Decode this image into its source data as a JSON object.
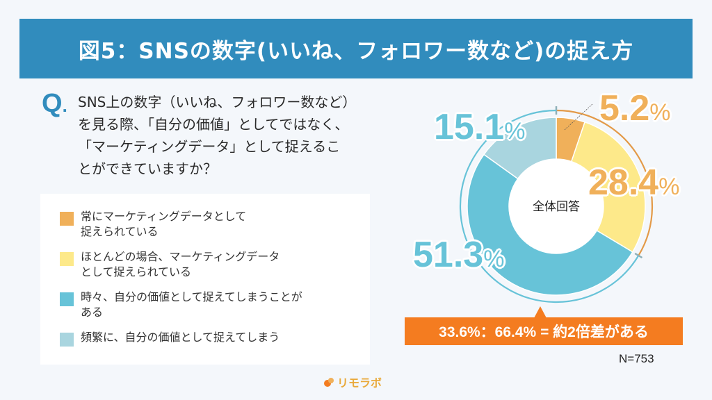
{
  "header": {
    "title": "図5：SNSの数字(いいね、フォロワー数など)の捉え方"
  },
  "question": {
    "mark": "Q",
    "mark_dot": ".",
    "text": "SNS上の数字（いいね、フォロワー数など）\nを見る際、「自分の価値」としてではなく、\n「マーケティングデータ」として捉えるこ\nとができていますか？"
  },
  "legend": {
    "items": [
      {
        "label": "常にマーケティングデータとして\n捉えられている",
        "color": "#f0b05a"
      },
      {
        "label": "ほとんどの場合、マーケティングデータ\nとして捉えられている",
        "color": "#fde98a"
      },
      {
        "label": "時々、自分の価値として捉えてしまうことが\nある",
        "color": "#67c3d8"
      },
      {
        "label": "頻繁に、自分の価値として捉えてしまう",
        "color": "#a9d5df"
      }
    ]
  },
  "chart": {
    "center_label": "全体回答",
    "labels": [
      {
        "value": "5.2",
        "sign": "%",
        "color": "#f0b05a"
      },
      {
        "value": "28.4",
        "sign": "%",
        "color": "#f0b05a"
      },
      {
        "value": "51.3",
        "sign": "%",
        "color": "#67c3d8"
      },
      {
        "value": "15.1",
        "sign": "%",
        "color": "#67c3d8"
      }
    ]
  },
  "callout": {
    "text": "33.6%：66.4% = 約2倍差がある",
    "color": "#f47c20"
  },
  "sample": {
    "text": "N=753"
  },
  "logo": {
    "text": "リモラボ"
  },
  "colors": {
    "header_bg": "#318cbd",
    "accent_orange": "#f47c20",
    "page_bg": "#f4f7fb"
  },
  "chart_data": {
    "type": "pie",
    "variant": "donut",
    "title": "図5：SNSの数字(いいね、フォロワー数など)の捉え方",
    "center_label": "全体回答",
    "categories": [
      "常にマーケティングデータとして捉えられている",
      "ほとんどの場合、マーケティングデータとして捉えられている",
      "時々、自分の価値として捉えてしまうことがある",
      "頻繁に、自分の価値として捉えてしまう"
    ],
    "values": [
      5.2,
      28.4,
      51.3,
      15.1
    ],
    "unit": "%",
    "colors": [
      "#f0b05a",
      "#fde98a",
      "#67c3d8",
      "#a9d5df"
    ],
    "start_angle": "12 o'clock, clockwise",
    "group_brackets": [
      {
        "segments": [
          0,
          1
        ],
        "total": 33.6,
        "color": "#e39a48"
      },
      {
        "segments": [
          2,
          3
        ],
        "total": 66.4,
        "color": "#67c3d8"
      }
    ],
    "annotation": "33.6%：66.4% = 約2倍差がある",
    "sample_size": "N=753",
    "legend_position": "left"
  }
}
